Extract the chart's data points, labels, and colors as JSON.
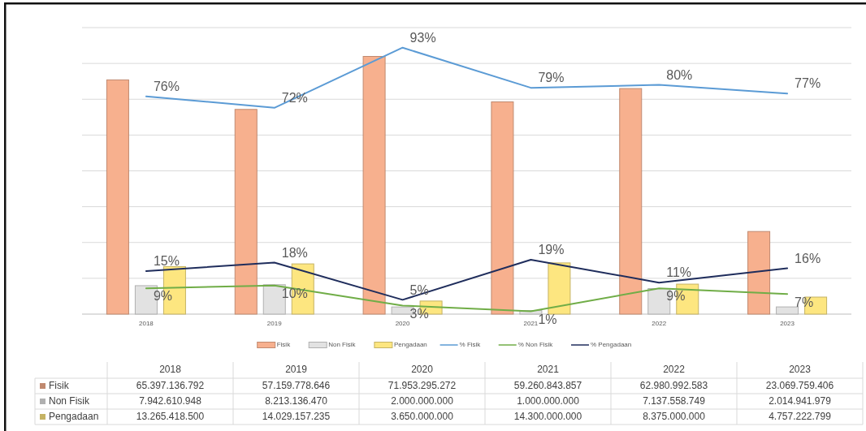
{
  "chart_data": {
    "type": "bar",
    "categories": [
      "2018",
      "2019",
      "2020",
      "2021",
      "2022",
      "2023"
    ],
    "ylim": [
      0,
      80000000000
    ],
    "yticks": [
      {
        "value": 0,
        "label": null
      },
      {
        "value": 10000000000,
        "label": null
      },
      {
        "value": 20000000000,
        "label": null
      },
      {
        "value": 30000000000,
        "label": null
      },
      {
        "value": 40000000000,
        "label": null
      },
      {
        "value": 50000000000,
        "label": null
      },
      {
        "value": 60000000000,
        "label": null
      },
      {
        "value": 70000000000,
        "label": null
      },
      {
        "value": 80000000000,
        "label": null
      }
    ],
    "y2lim": [
      0,
      100
    ],
    "tick_labels": "x",
    "grid": "y",
    "legend": "bottom",
    "series": [
      {
        "name": "Fisik",
        "color": "#f7b08e",
        "values": [
          65397136792,
          57159778646,
          71953295272,
          59260843857,
          62980992583,
          23069759406
        ],
        "value_labels": [
          "65.397.136.792",
          "57.159.778.646",
          "71.953.295.272",
          "59.260.843.857",
          "62.980.992.583",
          "23.069.759.406"
        ]
      },
      {
        "name": "Non Fisik",
        "color": "#e2e2e2",
        "values": [
          7942610948,
          8213136470,
          2000000000,
          1000000000,
          7137558749,
          2014941979
        ],
        "value_labels": [
          "7.942.610.948",
          "8.213.136.470",
          "2.000.000.000",
          "1.000.000.000",
          "7.137.558.749",
          "2.014.941.979"
        ]
      },
      {
        "name": "Pengadaan",
        "color": "#fde680",
        "values": [
          13265418500,
          14029157235,
          3650000000,
          14300000000,
          8375000000,
          4757222799
        ],
        "value_labels": [
          "13.265.418.500",
          "14.029.157.235",
          "3.650.000.000",
          "14.300.000.000",
          "8.375.000.000",
          "4.757.222.799"
        ]
      },
      {
        "name": "% Fisik",
        "type": "line",
        "axis": "y2",
        "color": "#5b9bd5",
        "values": [
          76,
          72,
          93,
          79,
          80,
          77
        ],
        "value_labels": [
          "76%",
          "72%",
          "93%",
          "79%",
          "80%",
          "77%"
        ]
      },
      {
        "name": "% Non Fisik",
        "type": "line",
        "axis": "y2",
        "color": "#70ad47",
        "values": [
          9,
          10,
          3,
          1,
          9,
          7
        ],
        "value_labels": [
          "9%",
          "10%",
          "3%",
          "1%",
          "9%",
          "7%"
        ]
      },
      {
        "name": "% Pengadaan",
        "type": "line",
        "axis": "y2",
        "color": "#1f2d5c",
        "values": [
          15,
          18,
          5,
          19,
          11,
          16
        ],
        "value_labels": [
          "15%",
          "18%",
          "5%",
          "19%",
          "11%",
          "16%"
        ]
      }
    ]
  }
}
